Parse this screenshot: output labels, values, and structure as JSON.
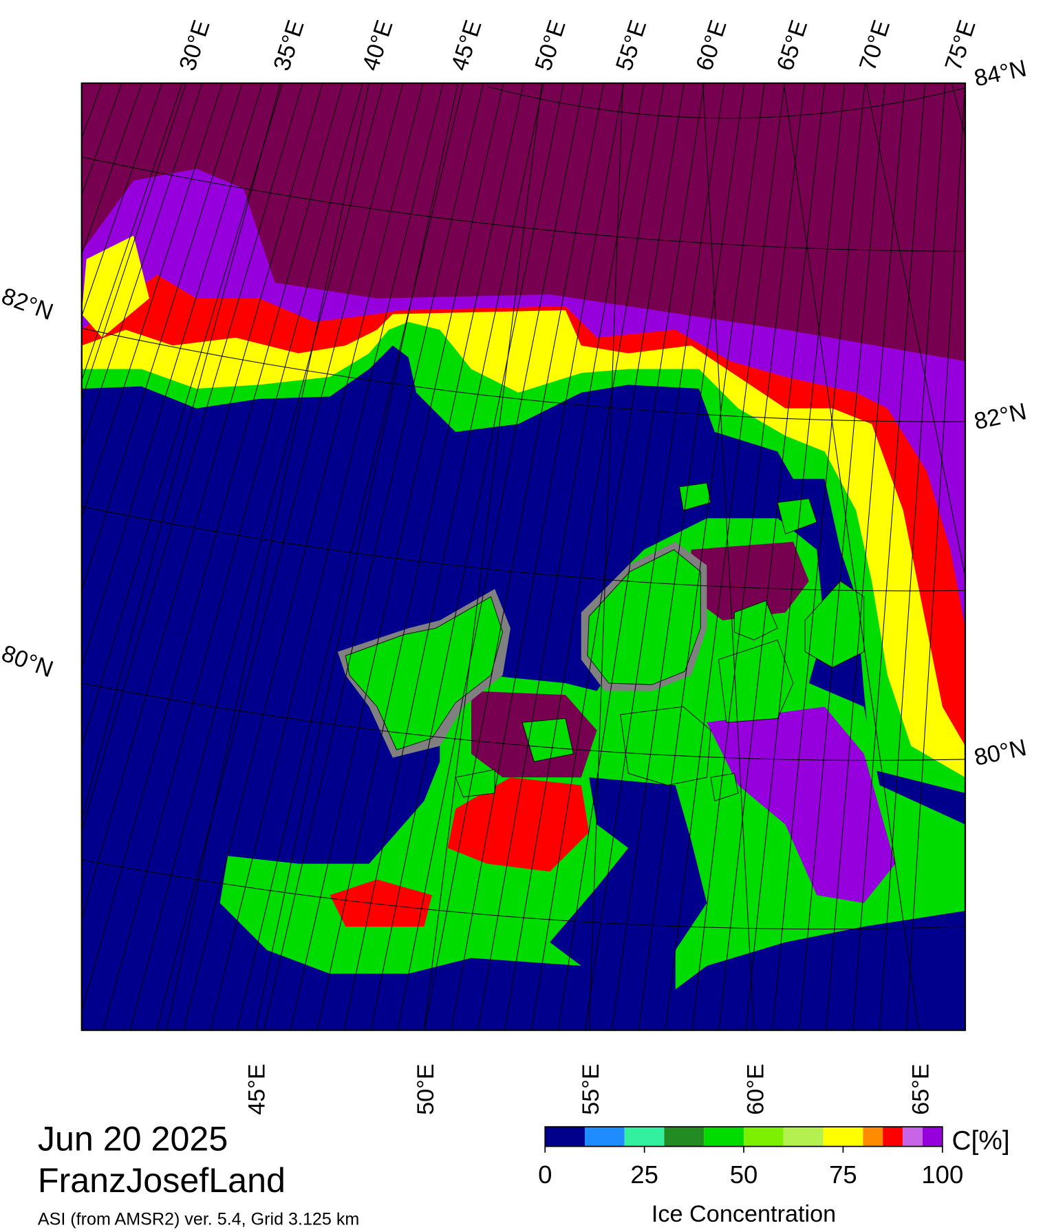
{
  "map": {
    "top_labels": [
      "30°E",
      "35°E",
      "40°E",
      "45°E",
      "50°E",
      "55°E",
      "60°E",
      "65°E",
      "70°E",
      "75°E"
    ],
    "bottom_labels": [
      "45°E",
      "50°E",
      "55°E",
      "60°E",
      "65°E"
    ],
    "left_labels": [
      "82°N",
      "80°N"
    ],
    "right_labels": [
      "84°N",
      "82°N",
      "80°N"
    ]
  },
  "footer": {
    "date": "Jun 20 2025",
    "region": "FranzJosefLand",
    "source": "ASI (from AMSR2) ver. 5.4,  Grid 3.125 km"
  },
  "colorbar": {
    "unit": "C[%]",
    "label": "Ice Concentration",
    "range": [
      0,
      100
    ],
    "ticks": [
      0,
      25,
      50,
      75,
      100
    ],
    "bounds": [
      0,
      10,
      20,
      30,
      40,
      50,
      60,
      70,
      80,
      85,
      90,
      95,
      100
    ],
    "colors": [
      "#00008c",
      "#1e8cff",
      "#32f0a0",
      "#228b22",
      "#00dc00",
      "#7cf000",
      "#b4f050",
      "#ffff00",
      "#ff8c00",
      "#ff0000",
      "#c864e6",
      "#9600dc"
    ]
  }
}
